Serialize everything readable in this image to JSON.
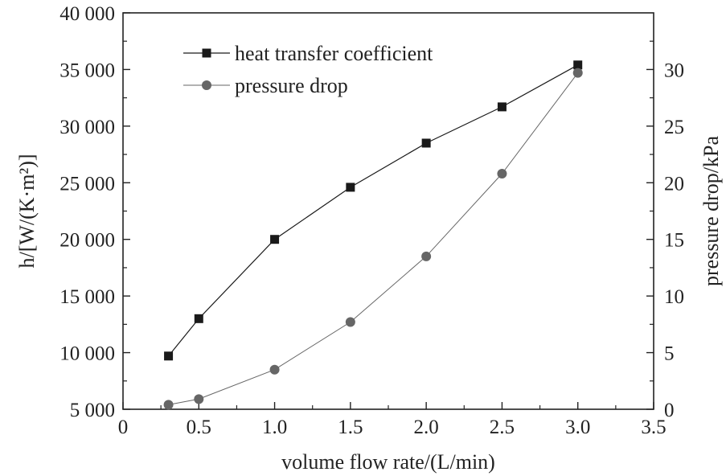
{
  "chart_data": {
    "type": "line",
    "x_label": "volume flow rate/(L/min)",
    "y_label": "h/[W/(K·m²)]",
    "y2_label": "pressure drop/kPa",
    "xlim": [
      0,
      3.5
    ],
    "ylim": [
      5000,
      40000
    ],
    "y2lim": [
      0,
      35
    ],
    "x_ticks": [
      "0",
      "0.5",
      "1.0",
      "1.5",
      "2.0",
      "2.5",
      "3.0",
      "3.5"
    ],
    "x_tick_values": [
      0,
      0.5,
      1.0,
      1.5,
      2.0,
      2.5,
      3.0,
      3.5
    ],
    "y_ticks": [
      "5 000",
      "10 000",
      "15 000",
      "20 000",
      "25 000",
      "30 000",
      "35 000",
      "40 000"
    ],
    "y_tick_values": [
      5000,
      10000,
      15000,
      20000,
      25000,
      30000,
      35000,
      40000
    ],
    "y2_ticks": [
      "0",
      "5",
      "10",
      "15",
      "20",
      "25",
      "30"
    ],
    "y2_tick_values": [
      0,
      5,
      10,
      15,
      20,
      25,
      30
    ],
    "grid": false,
    "legend_position": "top-left",
    "series": [
      {
        "name": "heat transfer coefficient",
        "axis": "left",
        "marker": "square",
        "color": "#1a1a1a",
        "x": [
          0.3,
          0.5,
          1.0,
          1.5,
          2.0,
          2.5,
          3.0
        ],
        "y": [
          9700,
          13000,
          20000,
          24600,
          28500,
          31700,
          35400
        ]
      },
      {
        "name": "pressure drop",
        "axis": "right",
        "marker": "circle",
        "color": "#666666",
        "x": [
          0.3,
          0.5,
          1.0,
          1.5,
          2.0,
          2.5,
          3.0
        ],
        "y": [
          0.4,
          0.9,
          3.5,
          7.7,
          13.5,
          20.8,
          29.7
        ]
      }
    ]
  }
}
